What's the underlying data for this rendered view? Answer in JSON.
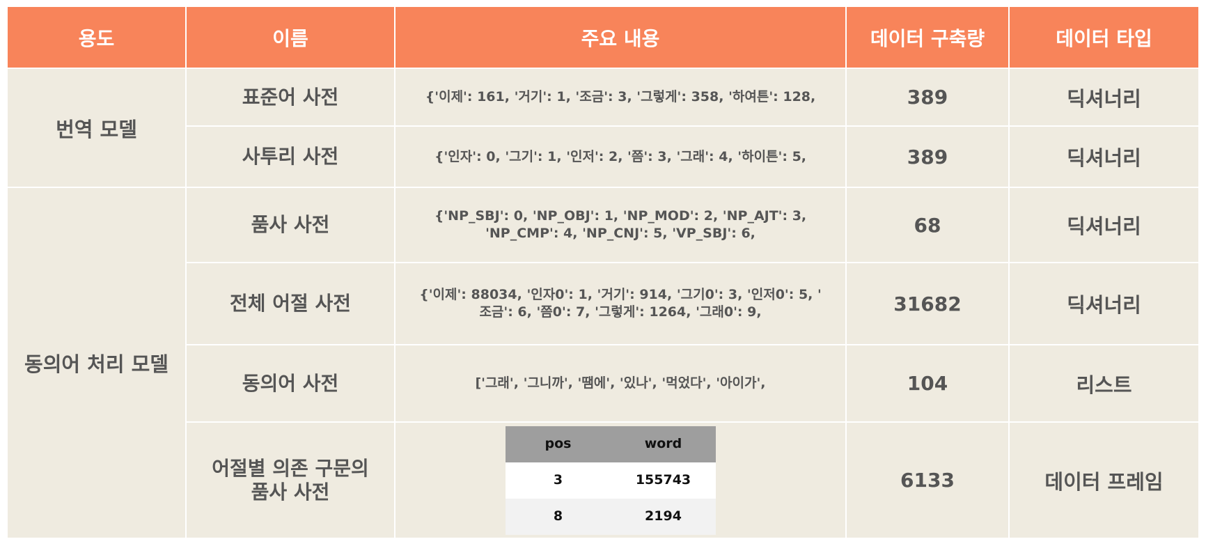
{
  "headers": [
    "용도",
    "이름",
    "주요 내용",
    "데이터 구축량",
    "데이터 타입"
  ],
  "groups": [
    "번역 모델",
    "동의어 처리 모델"
  ],
  "rows": [
    {
      "name": "표준어 사전",
      "content": [
        "{'이제': 161, '거기': 1, '조금': 3, '그렇게': 358, '하여튼': 128,"
      ],
      "amount": "389",
      "type": "딕셔너리"
    },
    {
      "name": "사투리 사전",
      "content": [
        "{'인자': 0, '그기': 1, '인저': 2, '쯤': 3, '그래': 4, '하이튼': 5,"
      ],
      "amount": "389",
      "type": "딕셔너리"
    },
    {
      "name": "품사 사전",
      "content": [
        "{'NP_SBJ': 0, 'NP_OBJ': 1, 'NP_MOD': 2, 'NP_AJT': 3,",
        "'NP_CMP': 4, 'NP_CNJ': 5, 'VP_SBJ': 6,"
      ],
      "amount": "68",
      "type": "딕셔너리"
    },
    {
      "name": "전체 어절 사전",
      "content": [
        "{'이제': 88034, '인자0': 1, '거기': 914, '그기0': 3, '인저0': 5, '",
        "조금': 6, '쯤0': 7, '그렇게': 1264, '그래0': 9,"
      ],
      "amount": "31682",
      "type": "딕셔너리"
    },
    {
      "name": "동의어 사전",
      "content": [
        "['그래', '그니까', '땜에', '있나', '먹었다', '아이가',"
      ],
      "amount": "104",
      "type": "리스트"
    },
    {
      "name": [
        "어절별 의존 구문의",
        "품사 사전"
      ],
      "amount": "6133",
      "type": "데이터 프레임",
      "mini_table": {
        "columns": [
          "pos",
          "word"
        ],
        "rows": [
          [
            "3",
            "155743"
          ],
          [
            "8",
            "2194"
          ]
        ]
      }
    }
  ]
}
